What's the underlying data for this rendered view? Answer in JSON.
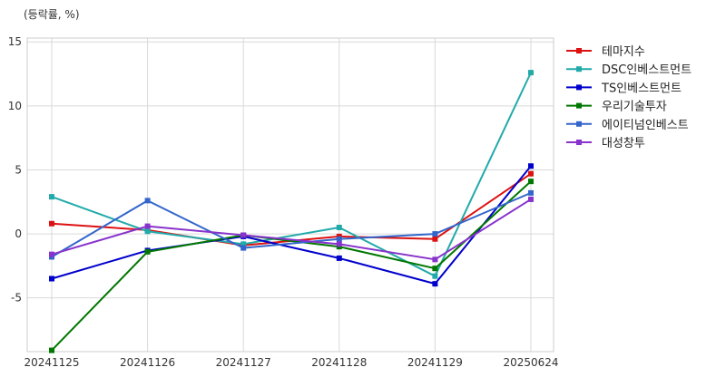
{
  "chart_data": {
    "type": "line",
    "unit_label": "(등락률, %)",
    "categories": [
      "20241125",
      "20241126",
      "20241127",
      "20241128",
      "20241129",
      "20250624"
    ],
    "ylim": [
      -9.2,
      15.3
    ],
    "yticks": [
      15,
      10,
      5,
      0,
      -5
    ],
    "ytick_labels": [
      "15",
      "10",
      "5",
      "0",
      "-5"
    ],
    "grid": true,
    "legend": "right",
    "series": [
      {
        "name": "테마지수",
        "color": "#dd1111",
        "values": [
          0.8,
          0.3,
          -0.9,
          -0.2,
          -0.4,
          4.7
        ]
      },
      {
        "name": "DSC인베스트먼트",
        "color": "#22aaaa",
        "values": [
          2.9,
          0.2,
          -0.8,
          0.5,
          -3.3,
          12.6
        ]
      },
      {
        "name": "TS인베스트먼트",
        "color": "#0000cc",
        "values": [
          -3.5,
          -1.3,
          -0.2,
          -1.9,
          -3.9,
          5.3
        ]
      },
      {
        "name": "우리기술투자",
        "color": "#007700",
        "values": [
          -9.1,
          -1.4,
          -0.1,
          -1.0,
          -2.7,
          4.1
        ]
      },
      {
        "name": "에이티넘인베스트",
        "color": "#3366cc",
        "values": [
          -1.8,
          2.6,
          -1.1,
          -0.4,
          0.0,
          3.2
        ]
      },
      {
        "name": "대성창투",
        "color": "#8833cc",
        "values": [
          -1.6,
          0.6,
          -0.1,
          -0.8,
          -2.0,
          2.7
        ]
      }
    ]
  }
}
